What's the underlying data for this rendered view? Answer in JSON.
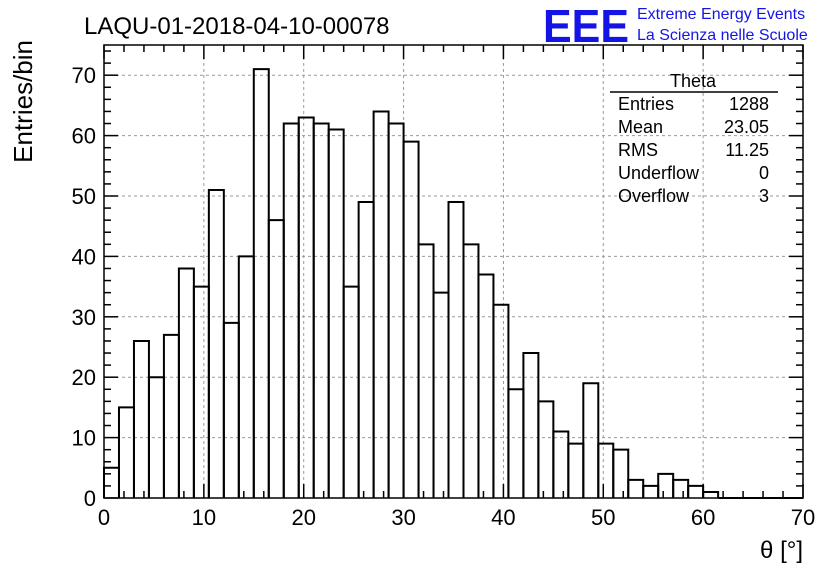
{
  "chart_data": {
    "type": "bar",
    "style": "step-histogram",
    "title": "LAQU-01-2018-04-10-00078",
    "xlabel": "θ [°]",
    "ylabel": "Entries/bin",
    "xlim": [
      0,
      70
    ],
    "ylim": [
      0,
      75
    ],
    "grid": true,
    "x_ticks": [
      0,
      10,
      20,
      30,
      40,
      50,
      60,
      70
    ],
    "y_ticks": [
      0,
      10,
      20,
      30,
      40,
      50,
      60,
      70
    ],
    "bin_width": 1.5,
    "bin_edges_start": 0,
    "values": [
      5,
      15,
      26,
      20,
      27,
      38,
      35,
      51,
      29,
      40,
      71,
      46,
      62,
      63,
      62,
      61,
      35,
      49,
      64,
      62,
      59,
      42,
      34,
      49,
      42,
      37,
      32,
      18,
      24,
      16,
      11,
      9,
      19,
      9,
      8,
      3,
      2,
      4,
      3,
      2,
      1,
      0,
      0,
      0,
      0,
      0,
      0
    ]
  },
  "stats": {
    "title": "Theta",
    "rows": [
      {
        "label": "Entries",
        "value": "1288"
      },
      {
        "label": "Mean",
        "value": "23.05"
      },
      {
        "label": "RMS",
        "value": "11.25"
      },
      {
        "label": "Underflow",
        "value": "0"
      },
      {
        "label": "Overflow",
        "value": "3"
      }
    ]
  },
  "logo": {
    "mark": "EEE",
    "line1": "Extreme Energy Events",
    "line2": "La Scienza nelle Scuole",
    "color": "#1414e6"
  }
}
